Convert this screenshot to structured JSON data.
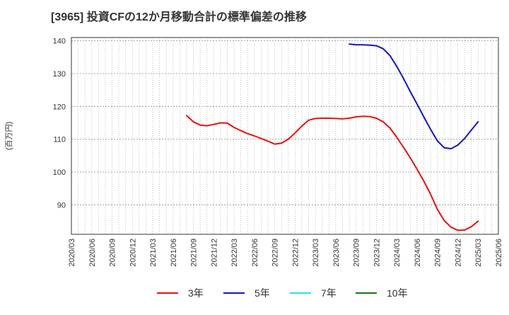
{
  "chart_data": {
    "type": "line",
    "title": "[3965]  投資CFの12か月移動合計の標準偏差の推移",
    "ylabel": "(百万円)",
    "xlabel": "",
    "ylim": [
      81,
      141
    ],
    "xlim": [
      "2020/03",
      "2025/06"
    ],
    "yticks": [
      90,
      100,
      110,
      120,
      130,
      140
    ],
    "xticks": [
      "2020/03",
      "2020/06",
      "2020/09",
      "2020/12",
      "2021/03",
      "2021/06",
      "2021/09",
      "2021/12",
      "2022/03",
      "2022/06",
      "2022/09",
      "2022/12",
      "2023/03",
      "2023/06",
      "2023/09",
      "2023/12",
      "2024/03",
      "2024/06",
      "2024/09",
      "2024/12",
      "2025/03",
      "2025/06"
    ],
    "grid": true,
    "legend_position": "bottom",
    "series": [
      {
        "name": "3年",
        "color": "#e8120f",
        "x": [
          "2021/08",
          "2021/09",
          "2021/10",
          "2021/11",
          "2021/12",
          "2022/01",
          "2022/02",
          "2022/03",
          "2022/04",
          "2022/05",
          "2022/06",
          "2022/07",
          "2022/08",
          "2022/09",
          "2022/10",
          "2022/11",
          "2022/12",
          "2023/01",
          "2023/02",
          "2023/03",
          "2023/04",
          "2023/05",
          "2023/06",
          "2023/07",
          "2023/08",
          "2023/09",
          "2023/10",
          "2023/11",
          "2023/12",
          "2024/01",
          "2024/02",
          "2024/03",
          "2024/04",
          "2024/05",
          "2024/06",
          "2024/07",
          "2024/08",
          "2024/09",
          "2024/10",
          "2024/11",
          "2024/12",
          "2025/01",
          "2025/02",
          "2025/03"
        ],
        "values": [
          117.2,
          115.3,
          114.3,
          114.1,
          114.5,
          115.0,
          114.9,
          113.6,
          112.6,
          111.7,
          111.0,
          110.2,
          109.4,
          108.5,
          108.8,
          110.0,
          111.9,
          114.0,
          115.8,
          116.3,
          116.4,
          116.4,
          116.3,
          116.2,
          116.4,
          116.8,
          117.0,
          116.9,
          116.4,
          115.3,
          113.4,
          110.6,
          107.5,
          104.3,
          100.8,
          97.2,
          93.2,
          88.6,
          85.2,
          83.2,
          82.2,
          82.3,
          83.3,
          85.0
        ]
      },
      {
        "name": "5年",
        "color": "#1515c8",
        "x": [
          "2023/08",
          "2023/09",
          "2023/10",
          "2023/11",
          "2023/12",
          "2024/01",
          "2024/02",
          "2024/03",
          "2024/04",
          "2024/05",
          "2024/06",
          "2024/07",
          "2024/08",
          "2024/09",
          "2024/10",
          "2024/11",
          "2024/12",
          "2025/01",
          "2025/02",
          "2025/03"
        ],
        "values": [
          139.0,
          138.8,
          138.8,
          138.7,
          138.5,
          137.6,
          135.5,
          132.2,
          128.5,
          124.5,
          120.7,
          116.8,
          113.0,
          109.5,
          107.4,
          107.1,
          108.2,
          110.2,
          112.8,
          115.3
        ]
      },
      {
        "name": "7年",
        "color": "#26e3e3",
        "x": [],
        "values": []
      },
      {
        "name": "10年",
        "color": "#127812",
        "x": [],
        "values": []
      }
    ]
  }
}
